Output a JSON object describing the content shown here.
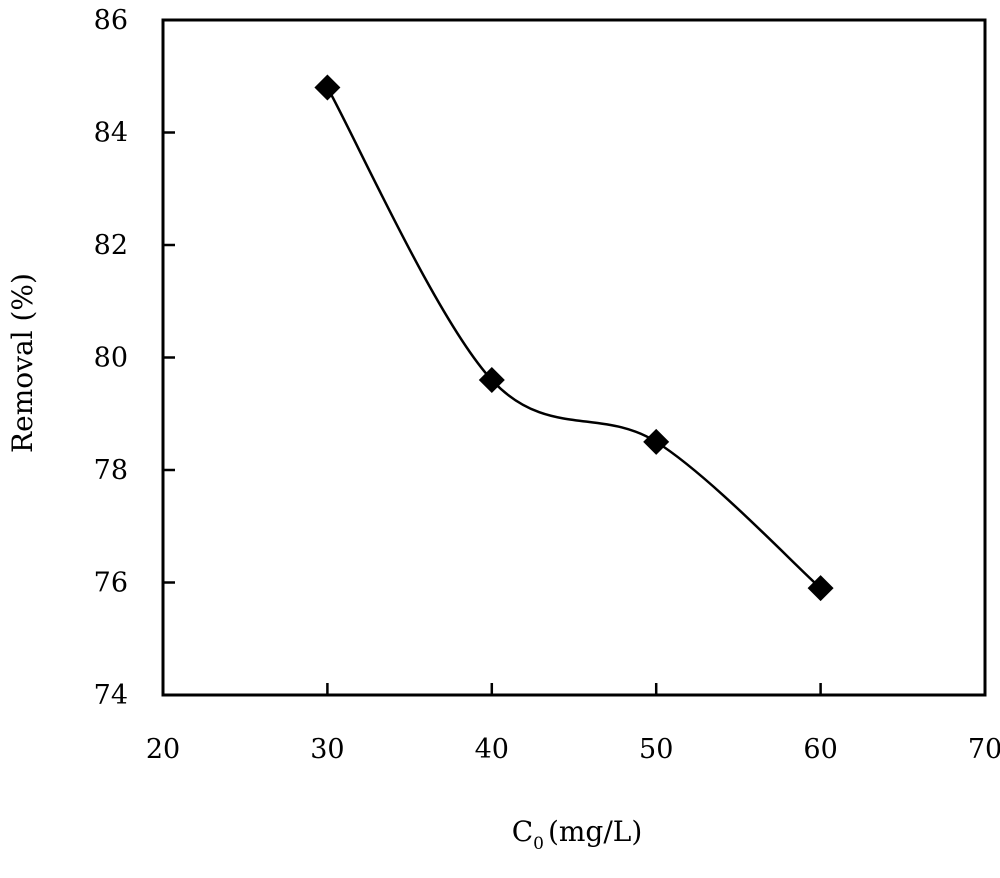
{
  "chart_data": {
    "type": "scatter",
    "title": "",
    "xlabel": "C",
    "xlabel_subscript": "0",
    "xlabel_units": "(mg/L)",
    "ylabel": "Removal (%)",
    "xlim": [
      20,
      70
    ],
    "ylim": [
      74,
      86
    ],
    "xticks": [
      20,
      30,
      40,
      50,
      60,
      70
    ],
    "yticks": [
      74,
      76,
      78,
      80,
      82,
      84,
      86
    ],
    "grid": false,
    "legend": "none",
    "marker": "diamond",
    "line": "smooth",
    "color": "#000000",
    "series": [
      {
        "x": [
          30,
          40,
          50,
          60
        ],
        "y": [
          84.8,
          79.6,
          78.5,
          75.9
        ]
      }
    ]
  }
}
